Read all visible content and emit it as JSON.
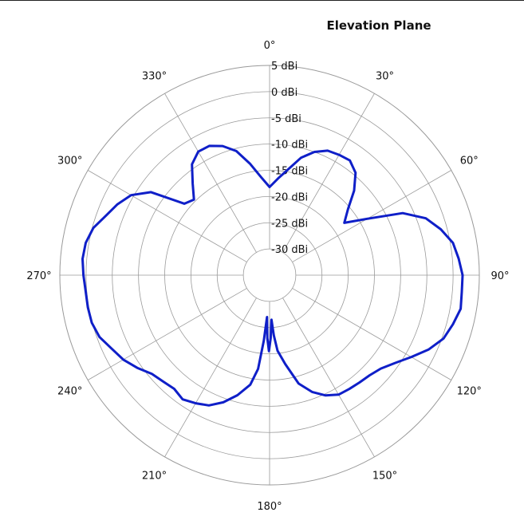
{
  "chart_data": {
    "type": "polar-line",
    "title": "Elevation Plane",
    "angle_unit": "deg",
    "radial_unit": "dBi",
    "radial_range": [
      -35,
      5
    ],
    "radial_ticks": [
      -30,
      -25,
      -20,
      -15,
      -10,
      -5,
      0,
      5
    ],
    "radial_tick_labels": [
      "-30 dBi",
      "-25 dBi",
      "-20 dBi",
      "-15 dBi",
      "-10 dBi",
      "-5 dBi",
      "0 dBi",
      "5 dBi"
    ],
    "angle_ticks": [
      0,
      30,
      60,
      90,
      120,
      150,
      180,
      210,
      240,
      270,
      300,
      330
    ],
    "angle_tick_labels": [
      "0°",
      "30°",
      "60°",
      "90°",
      "120°",
      "150°",
      "180°",
      "210°",
      "240°",
      "270°",
      "300°",
      "330°"
    ],
    "angle_direction": "clockwise",
    "zero_location": "top",
    "grid": true,
    "series": [
      {
        "color": "#0f1fc8",
        "points": [
          [
            0,
            -18.2
          ],
          [
            5,
            -16.5
          ],
          [
            10,
            -14.5
          ],
          [
            15,
            -11.8
          ],
          [
            20,
            -10
          ],
          [
            25,
            -8.8
          ],
          [
            30,
            -8.5
          ],
          [
            35,
            -8.3
          ],
          [
            40,
            -9.5
          ],
          [
            45,
            -12.2
          ],
          [
            50,
            -15.5
          ],
          [
            55,
            -17.6
          ],
          [
            60,
            -13.5
          ],
          [
            65,
            -7
          ],
          [
            70,
            -3.3
          ],
          [
            75,
            -1.2
          ],
          [
            80,
            0.5
          ],
          [
            85,
            1.2
          ],
          [
            90,
            1.8
          ],
          [
            95,
            1.8
          ],
          [
            100,
            2
          ],
          [
            105,
            1.2
          ],
          [
            110,
            0.3
          ],
          [
            115,
            -1.5
          ],
          [
            120,
            -3.8
          ],
          [
            125,
            -5.8
          ],
          [
            130,
            -7.3
          ],
          [
            135,
            -8
          ],
          [
            140,
            -8.3
          ],
          [
            145,
            -8.5
          ],
          [
            150,
            -8.7
          ],
          [
            155,
            -9.7
          ],
          [
            160,
            -11.3
          ],
          [
            165,
            -13.6
          ],
          [
            170,
            -17.8
          ],
          [
            174,
            -20.5
          ],
          [
            176,
            -23.5
          ],
          [
            177.5,
            -26.5
          ],
          [
            179,
            -23
          ],
          [
            180.5,
            -20.5
          ],
          [
            182,
            -23
          ],
          [
            183.5,
            -27
          ],
          [
            185,
            -22.5
          ],
          [
            187,
            -17
          ],
          [
            190,
            -13.8
          ],
          [
            195,
            -11.3
          ],
          [
            200,
            -9.2
          ],
          [
            205,
            -7.6
          ],
          [
            210,
            -6.8
          ],
          [
            215,
            -6.1
          ],
          [
            220,
            -6.7
          ],
          [
            225,
            -6.3
          ],
          [
            230,
            -5.7
          ],
          [
            235,
            -4.2
          ],
          [
            240,
            -2.8
          ],
          [
            245,
            -1.8
          ],
          [
            250,
            -0.5
          ],
          [
            255,
            0.1
          ],
          [
            260,
            0.2
          ],
          [
            265,
            0.2
          ],
          [
            270,
            0.5
          ],
          [
            275,
            0.8
          ],
          [
            280,
            0.6
          ],
          [
            285,
            -0.2
          ],
          [
            290,
            -1.8
          ],
          [
            295,
            -3
          ],
          [
            300,
            -4.5
          ],
          [
            305,
            -7.4
          ],
          [
            310,
            -13.8
          ],
          [
            315,
            -14.6
          ],
          [
            320,
            -12.2
          ],
          [
            325,
            -9.2
          ],
          [
            330,
            -7.8
          ],
          [
            335,
            -7.8
          ],
          [
            340,
            -8.8
          ],
          [
            345,
            -10.5
          ],
          [
            350,
            -13.4
          ],
          [
            355,
            -16.2
          ],
          [
            360,
            -18.2
          ]
        ]
      }
    ]
  }
}
